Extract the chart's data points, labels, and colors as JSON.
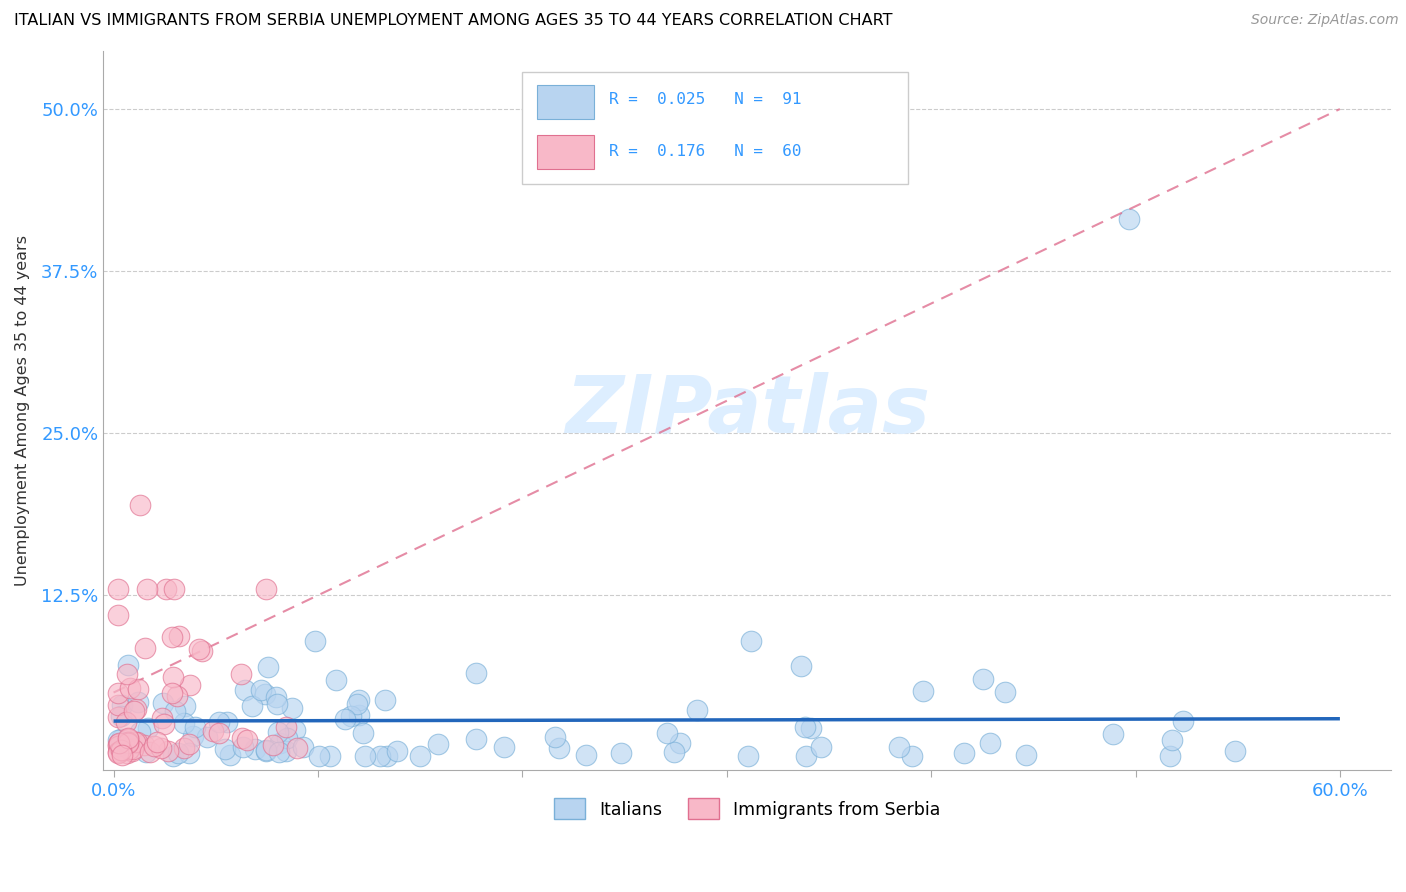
{
  "title": "ITALIAN VS IMMIGRANTS FROM SERBIA UNEMPLOYMENT AMONG AGES 35 TO 44 YEARS CORRELATION CHART",
  "source": "Source: ZipAtlas.com",
  "ylabel": "Unemployment Among Ages 35 to 44 years",
  "xlim": [
    -0.005,
    0.625
  ],
  "ylim": [
    -0.01,
    0.545
  ],
  "yticks": [
    0.0,
    0.125,
    0.25,
    0.375,
    0.5
  ],
  "ytick_labels": [
    "",
    "12.5%",
    "25.0%",
    "37.5%",
    "50.0%"
  ],
  "xtick_labels": [
    "0.0%",
    "",
    "",
    "",
    "",
    "",
    "60.0%"
  ],
  "background_color": "#ffffff",
  "grid_color": "#cccccc",
  "title_color": "#000000",
  "tick_label_color": "#3399ff",
  "italians_color": "#b8d4f0",
  "italians_edge_color": "#7ab0d8",
  "serbia_color": "#f8b8c8",
  "serbia_edge_color": "#e07090",
  "trend_italian_color": "#2266bb",
  "trend_serbia_color": "#dd6688",
  "watermark_color": "#ddeeff",
  "legend_italian_label": "R =  0.025   N =  91",
  "legend_serbia_label": "R =  0.176   N =  60"
}
